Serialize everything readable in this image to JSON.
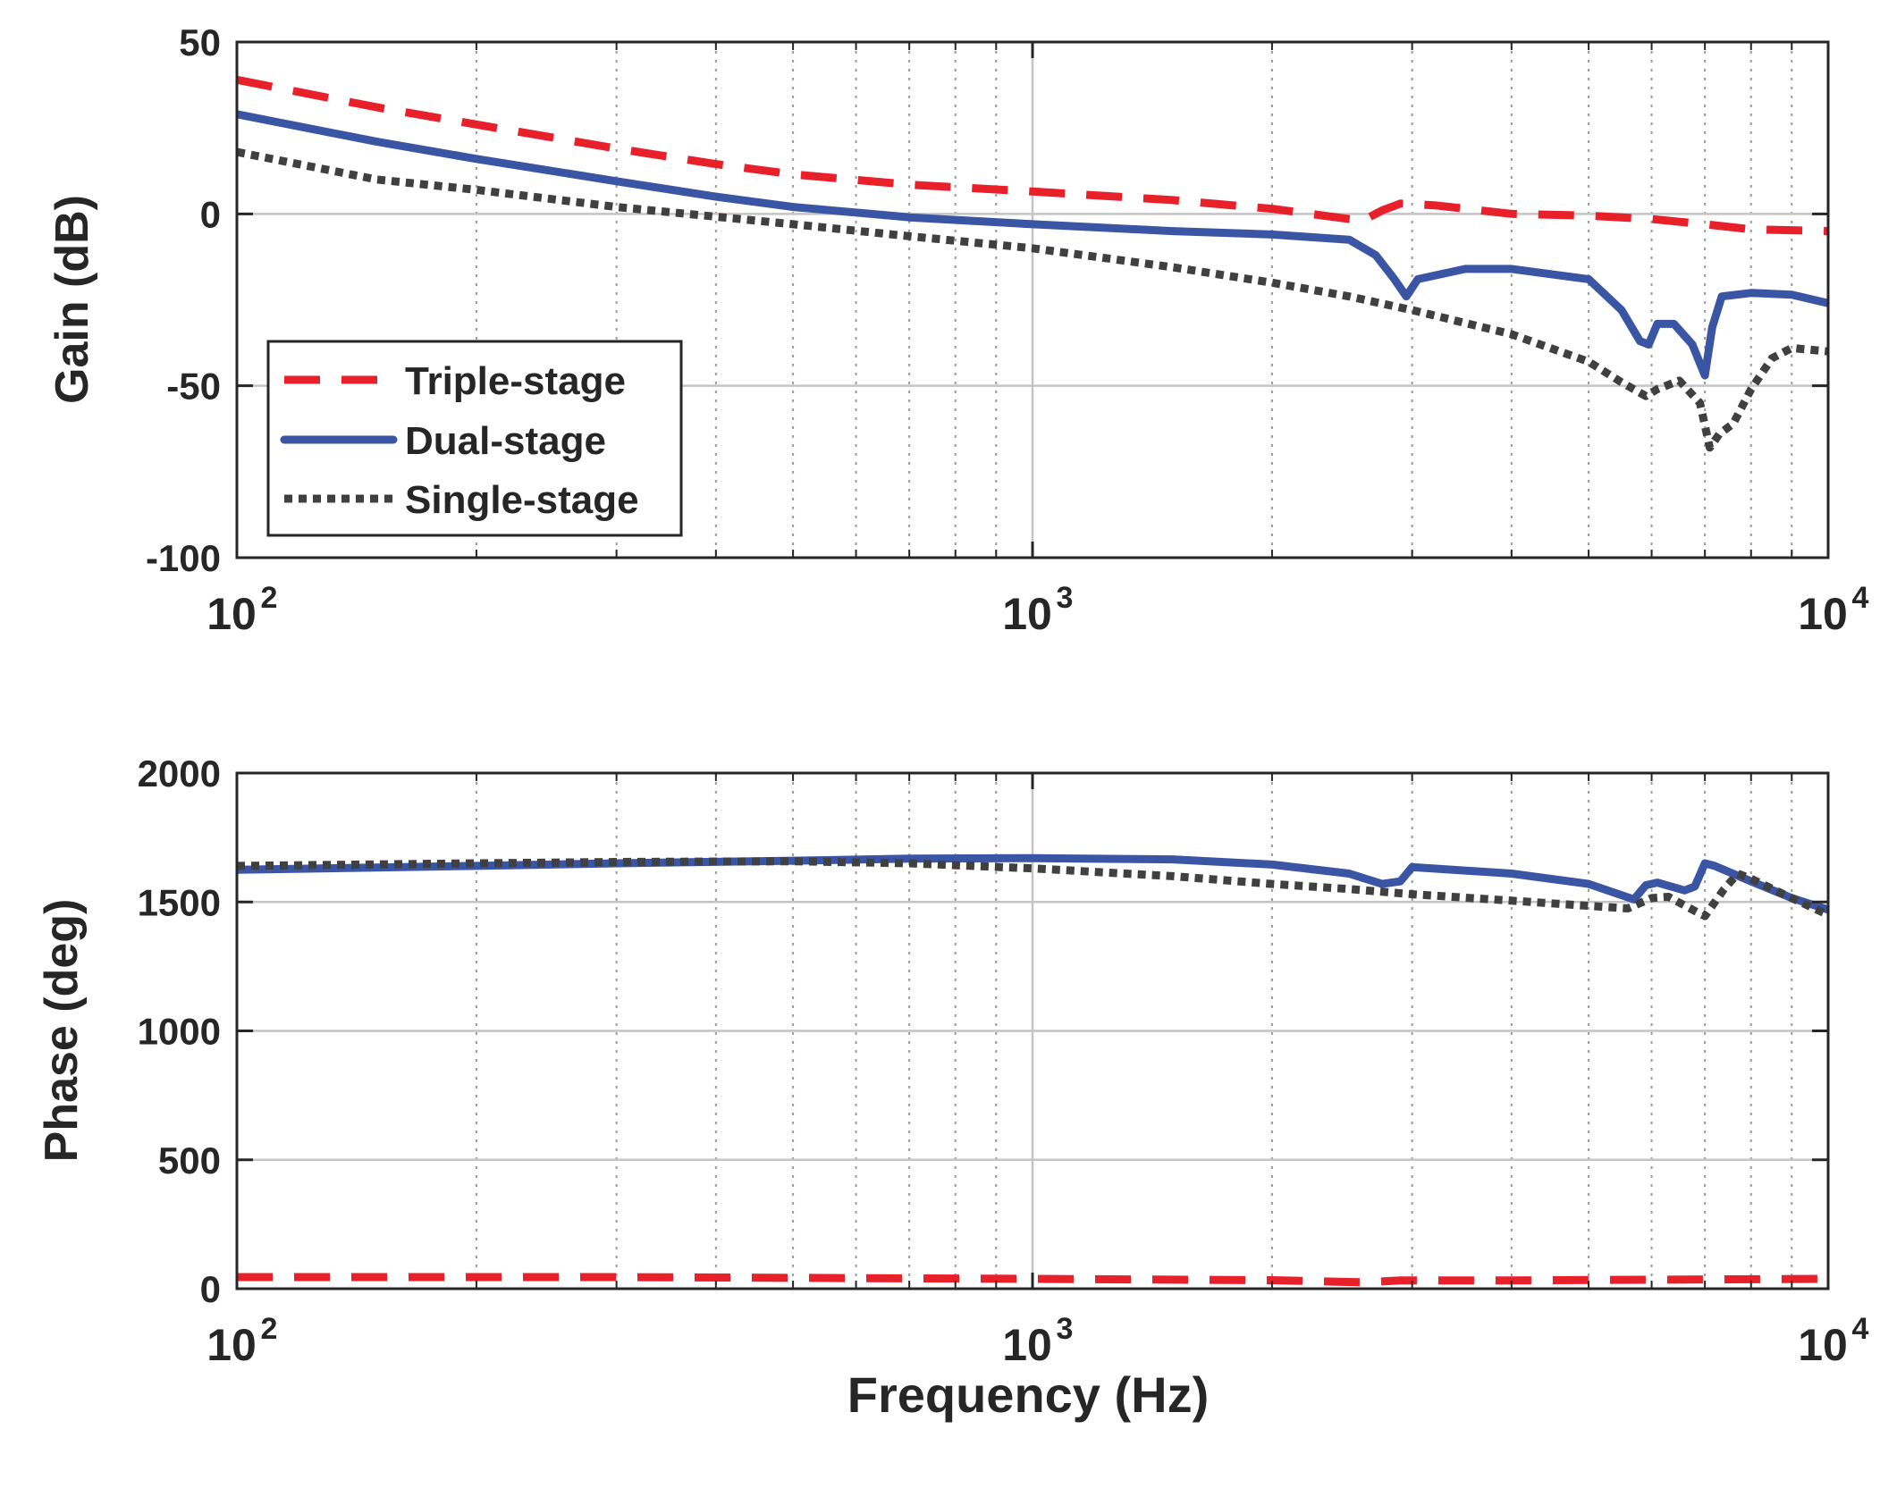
{
  "chart_data": [
    {
      "type": "line",
      "title": "",
      "xlabel": "",
      "ylabel": "Gain (dB)",
      "xscale": "log",
      "xlim": [
        100,
        10000
      ],
      "ylim": [
        -100,
        50
      ],
      "yticks": [
        50,
        0,
        -50,
        -100
      ],
      "ytick_labels": [
        "50",
        "0",
        "-50",
        "-100"
      ],
      "xticks": [
        100,
        1000,
        10000
      ],
      "xtick_labels": [
        {
          "base": "10",
          "exp": "2"
        },
        {
          "base": "10",
          "exp": "3"
        },
        {
          "base": "10",
          "exp": "4"
        }
      ],
      "grid": true,
      "legend_position": "bottom-left",
      "series": [
        {
          "name": "Triple-stage",
          "color": "#e8202a",
          "style": "dashed",
          "x": [
            100,
            150,
            200,
            300,
            400,
            500,
            700,
            1000,
            1500,
            2000,
            2500,
            2600,
            2750,
            2900,
            3200,
            4000,
            5000,
            6000,
            7000,
            8000,
            10000
          ],
          "y": [
            39,
            31,
            26,
            19,
            14.5,
            11.5,
            8.5,
            6.5,
            4,
            1.5,
            -1.5,
            -2,
            1,
            3,
            2.5,
            0,
            -0.5,
            -1.5,
            -3,
            -4.5,
            -5
          ]
        },
        {
          "name": "Dual-stage",
          "color": "#3a55a4",
          "style": "solid",
          "x": [
            100,
            150,
            200,
            300,
            400,
            500,
            700,
            1000,
            1500,
            2000,
            2500,
            2700,
            2850,
            2950,
            3050,
            3500,
            4000,
            5000,
            5500,
            5800,
            5950,
            6100,
            6400,
            6750,
            7000,
            7150,
            7350,
            8000,
            9000,
            10000
          ],
          "y": [
            29,
            21,
            16,
            9.5,
            5,
            2,
            -1,
            -3,
            -5,
            -6,
            -7.5,
            -12,
            -19,
            -24,
            -19,
            -16,
            -16,
            -19,
            -28,
            -37,
            -38,
            -32,
            -32,
            -38,
            -47,
            -33,
            -24,
            -23,
            -23.5,
            -26
          ]
        },
        {
          "name": "Single-stage",
          "color": "#404040",
          "style": "dotted",
          "x": [
            100,
            150,
            200,
            300,
            500,
            700,
            1000,
            1500,
            2000,
            2500,
            3000,
            4000,
            5000,
            5500,
            5900,
            6100,
            6500,
            6900,
            7100,
            7300,
            7600,
            8000,
            8500,
            9000,
            10000
          ],
          "y": [
            18,
            10,
            7,
            2,
            -3,
            -6.5,
            -10,
            -15.5,
            -20,
            -24,
            -28,
            -35,
            -43,
            -49,
            -53,
            -51,
            -48.5,
            -55,
            -68,
            -64,
            -61,
            -51,
            -42,
            -39,
            -40
          ]
        }
      ]
    },
    {
      "type": "line",
      "title": "",
      "xlabel": "Frequency (Hz)",
      "ylabel": "Phase (deg)",
      "xscale": "log",
      "xlim": [
        100,
        10000
      ],
      "ylim": [
        0,
        2000
      ],
      "yticks": [
        2000,
        1500,
        1000,
        500,
        0
      ],
      "ytick_labels": [
        "2000",
        "1500",
        "1000",
        "500",
        "0"
      ],
      "xticks": [
        100,
        1000,
        10000
      ],
      "xtick_labels": [
        {
          "base": "10",
          "exp": "2"
        },
        {
          "base": "10",
          "exp": "3"
        },
        {
          "base": "10",
          "exp": "4"
        }
      ],
      "grid": true,
      "series": [
        {
          "name": "Triple-stage",
          "color": "#e8202a",
          "style": "dashed",
          "x": [
            100,
            300,
            1000,
            2000,
            2600,
            2900,
            4000,
            6000,
            10000
          ],
          "y": [
            45,
            45,
            38,
            33,
            25,
            32,
            32,
            35,
            38
          ]
        },
        {
          "name": "Dual-stage",
          "color": "#3a55a4",
          "style": "solid",
          "x": [
            100,
            200,
            300,
            500,
            700,
            1000,
            1500,
            2000,
            2500,
            2750,
            2900,
            3000,
            4000,
            5000,
            5700,
            5900,
            6100,
            6600,
            6800,
            7000,
            7200,
            8000,
            9000,
            10000
          ],
          "y": [
            1625,
            1640,
            1650,
            1660,
            1668,
            1670,
            1665,
            1645,
            1610,
            1570,
            1580,
            1635,
            1610,
            1570,
            1510,
            1565,
            1575,
            1545,
            1560,
            1650,
            1640,
            1580,
            1515,
            1470
          ]
        },
        {
          "name": "Single-stage",
          "color": "#404040",
          "style": "dotted",
          "x": [
            100,
            200,
            300,
            500,
            700,
            1000,
            1500,
            2000,
            2500,
            3000,
            4000,
            5000,
            5600,
            6000,
            6300,
            6800,
            7000,
            7400,
            7700,
            8000,
            9000,
            10000
          ],
          "y": [
            1640,
            1650,
            1655,
            1658,
            1650,
            1630,
            1600,
            1570,
            1550,
            1530,
            1505,
            1485,
            1475,
            1515,
            1520,
            1465,
            1445,
            1550,
            1610,
            1590,
            1515,
            1450
          ]
        }
      ]
    }
  ]
}
